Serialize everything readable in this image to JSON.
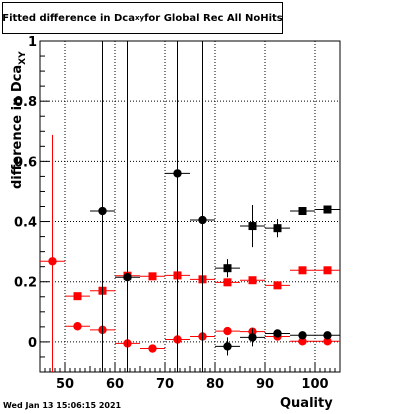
{
  "title": {
    "prefix": "Fitted difference in Dca",
    "sub": "xy",
    "suffix": " for Global Rec All NoHits"
  },
  "timestamp": "Wed Jan 13 15:06:15 2021",
  "colors": {
    "red": "#ff0000",
    "black": "#000000",
    "grid": "#000000"
  },
  "chart_data": {
    "type": "scatter",
    "title": "Fitted difference in Dca_xy for Global Rec All NoHits",
    "xlabel": "Quality",
    "ylabel_main": "difference in Dca",
    "ylabel_sub": "XY",
    "xlim": [
      45,
      105
    ],
    "ylim": [
      -0.1,
      1.0
    ],
    "xticks": [
      50,
      60,
      70,
      80,
      90,
      100
    ],
    "xtick_labels": [
      "50",
      "60",
      "70",
      "80",
      "90",
      "100"
    ],
    "yticks": [
      0,
      0.2,
      0.4,
      0.6,
      0.8,
      1.0
    ],
    "ytick_labels": [
      "0",
      "0.2",
      "0.4",
      "0.6",
      "0.8",
      "1"
    ],
    "grid": true,
    "series": [
      {
        "marker": "square",
        "color": "#ff0000",
        "x": [
          52.5,
          57.5,
          62.5,
          67.5,
          72.5,
          77.5,
          82.5,
          87.5,
          92.5,
          97.5,
          102.5
        ],
        "y": [
          0.152,
          0.17,
          0.22,
          0.218,
          0.221,
          0.208,
          0.198,
          0.205,
          0.188,
          0.238,
          0.238
        ],
        "yerr": [
          0.004,
          0.004,
          0.01,
          0.004,
          0.004,
          0.004,
          0.004,
          0.004,
          0.004,
          0.004,
          0.004
        ]
      },
      {
        "marker": "circle",
        "color": "#ff0000",
        "x": [
          47.5,
          52.5,
          57.5,
          62.5,
          67.5,
          72.5,
          77.5,
          82.5,
          87.5,
          92.5,
          97.5,
          102.5
        ],
        "y": [
          0.268,
          0.052,
          0.04,
          -0.005,
          -0.022,
          0.008,
          0.018,
          0.036,
          0.034,
          0.018,
          0.002,
          0.002
        ],
        "yerr": [
          0.42,
          0.004,
          0.004,
          0.004,
          0.004,
          0.004,
          0.004,
          0.004,
          0.004,
          0.004,
          0.004,
          0.004
        ]
      },
      {
        "marker": "square",
        "color": "#000000",
        "x": [
          82.5,
          87.5,
          92.5,
          97.5,
          102.5
        ],
        "y": [
          0.245,
          0.385,
          0.378,
          0.435,
          0.44
        ],
        "yerr": [
          0.03,
          0.07,
          0.03,
          0.012,
          0.012
        ]
      },
      {
        "marker": "circle",
        "color": "#000000",
        "x": [
          57.5,
          62.5,
          72.5,
          77.5,
          82.5,
          87.5,
          92.5,
          97.5,
          102.5
        ],
        "y": [
          0.435,
          0.215,
          0.56,
          0.405,
          -0.015,
          0.015,
          0.028,
          0.022,
          0.022
        ],
        "yerr": [
          1.0,
          1.0,
          1.0,
          1.0,
          0.03,
          0.03,
          0.01,
          0.01,
          0.01
        ]
      }
    ]
  }
}
